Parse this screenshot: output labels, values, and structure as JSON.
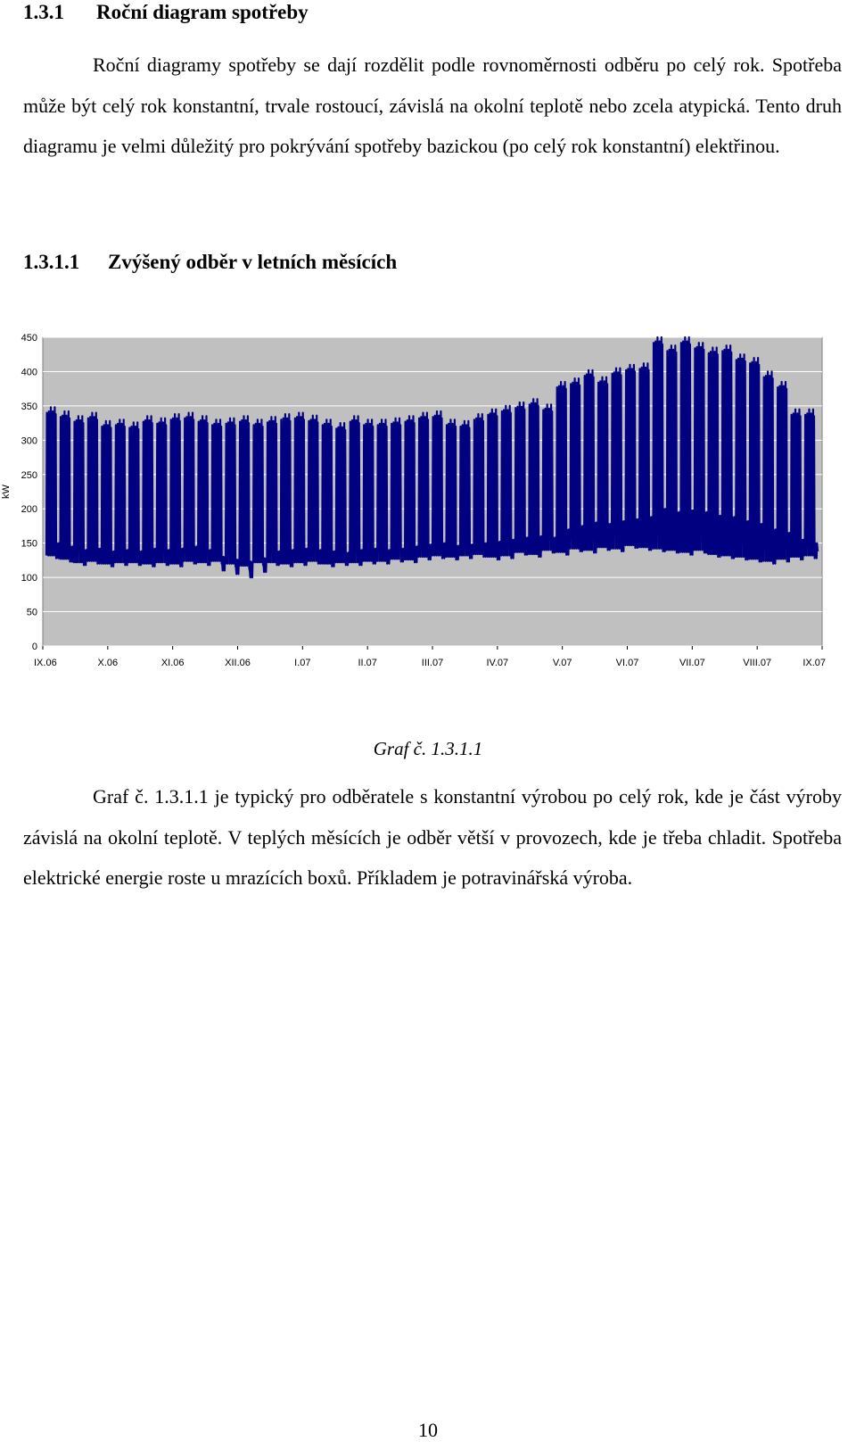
{
  "section": {
    "number": "1.3.1",
    "title": "Roční diagram spotřeby"
  },
  "paragraph1": "Roční diagramy spotřeby se dají rozdělit podle rovnoměrnosti odběru po celý rok. Spotřeba může být celý rok konstantní, trvale rostoucí, závislá na okolní teplotě nebo zcela atypická. Tento druh diagramu je velmi důležitý pro pokrývání spotřeby bazickou (po celý rok konstantní) elektřinou.",
  "subsection": {
    "number": "1.3.1.1",
    "title": "Zvýšený odběr v letních měsících"
  },
  "chart_data": {
    "type": "line",
    "ylabel": "kW",
    "ylim": [
      0,
      450
    ],
    "yticks": [
      "0",
      "50",
      "100",
      "150",
      "200",
      "250",
      "300",
      "350",
      "400",
      "450"
    ],
    "categories": [
      "IX.06",
      "X.06",
      "XI.06",
      "XII.06",
      "I.07",
      "II.07",
      "III.07",
      "IV.07",
      "V.07",
      "VI.07",
      "VII.07",
      "VIII.07",
      "IX.07"
    ],
    "grid": true,
    "plot_background": "#c0c0c0",
    "series_color": "#000080",
    "series": [
      {
        "label": "",
        "weekly_peak_kw": [
          348,
          342,
          335,
          340,
          328,
          330,
          326,
          335,
          332,
          338,
          340,
          335,
          330,
          332,
          335,
          330,
          334,
          338,
          340,
          336,
          330,
          325,
          335,
          330,
          330,
          332,
          335,
          340,
          342,
          330,
          328,
          338,
          345,
          350,
          355,
          360,
          352,
          385,
          390,
          402,
          392,
          405,
          410,
          412,
          450,
          438,
          450,
          442,
          435,
          438,
          425,
          420,
          400,
          385,
          345,
          345
        ],
        "weekly_base_kw": [
          120,
          115,
          110,
          112,
          108,
          110,
          110,
          108,
          110,
          108,
          112,
          110,
          112,
          108,
          105,
          110,
          110,
          108,
          110,
          112,
          108,
          110,
          110,
          112,
          112,
          115,
          114,
          118,
          120,
          118,
          120,
          122,
          118,
          120,
          125,
          122,
          128,
          125,
          130,
          128,
          132,
          130,
          135,
          132,
          130,
          128,
          125,
          128,
          122,
          120,
          118,
          115,
          112,
          115,
          118,
          120
        ],
        "weekly_mid_kw": [
          190,
          185,
          180,
          182,
          178,
          180,
          178,
          182,
          180,
          182,
          185,
          180,
          160,
          155,
          150,
          158,
          178,
          180,
          182,
          180,
          178,
          176,
          180,
          182,
          180,
          182,
          185,
          188,
          190,
          186,
          188,
          190,
          192,
          195,
          198,
          200,
          198,
          210,
          215,
          220,
          218,
          222,
          225,
          228,
          240,
          235,
          238,
          235,
          230,
          228,
          222,
          218,
          210,
          205,
          195,
          190
        ]
      }
    ]
  },
  "caption": "Graf č. 1.3.1.1",
  "paragraph2": "Graf č. 1.3.1.1 je typický pro odběratele s konstantní výrobou po celý rok, kde je část výroby závislá na okolní teplotě. V teplých měsících je odběr větší v provozech, kde je třeba chladit. Spotřeba elektrické energie roste u mrazících boxů. Příkladem je potravinářská výroba.",
  "page_number": "10"
}
